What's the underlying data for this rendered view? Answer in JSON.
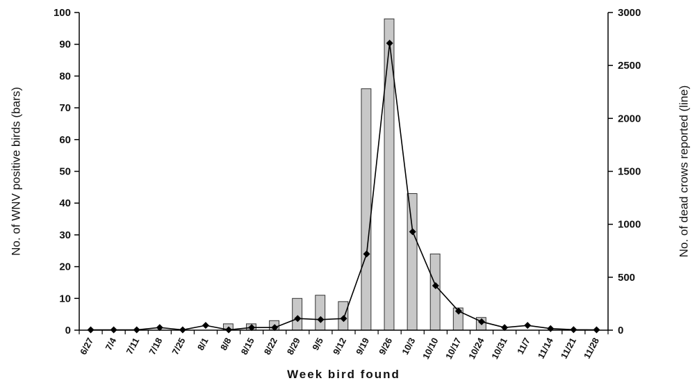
{
  "chart_data": {
    "type": "bar",
    "xlabel": "Week bird found",
    "ylabel_left": "No. of WNV positive birds (bars)",
    "ylabel_right": "No. of dead crows reported (line)",
    "ylim_left": [
      0,
      100
    ],
    "ylim_right": [
      0,
      3000
    ],
    "yticks_left": [
      0,
      10,
      20,
      30,
      40,
      50,
      60,
      70,
      80,
      90,
      100
    ],
    "yticks_right": [
      0,
      500,
      1000,
      1500,
      2000,
      2500,
      3000
    ],
    "categories": [
      "6/27",
      "7/4",
      "7/11",
      "7/18",
      "7/25",
      "8/1",
      "8/8",
      "8/15",
      "8/22",
      "8/29",
      "9/5",
      "9/12",
      "9/19",
      "9/26",
      "10/3",
      "10/10",
      "10/17",
      "10/24",
      "10/31",
      "11/7",
      "11/14",
      "11/21",
      "11/28"
    ],
    "series": [
      {
        "type": "bar",
        "axis": "left",
        "color": "#c8c8c8",
        "values": [
          0,
          0,
          0,
          0,
          0,
          0,
          2,
          2,
          3,
          10,
          11,
          9,
          76,
          98,
          43,
          24,
          7,
          4,
          0,
          0,
          0,
          0,
          0
        ]
      },
      {
        "type": "line",
        "axis": "right",
        "color": "#000000",
        "values": [
          3,
          3,
          3,
          25,
          3,
          45,
          3,
          25,
          25,
          110,
          100,
          110,
          720,
          2710,
          930,
          420,
          180,
          80,
          25,
          45,
          15,
          5,
          3
        ]
      }
    ],
    "grid": false,
    "legend": "none"
  }
}
